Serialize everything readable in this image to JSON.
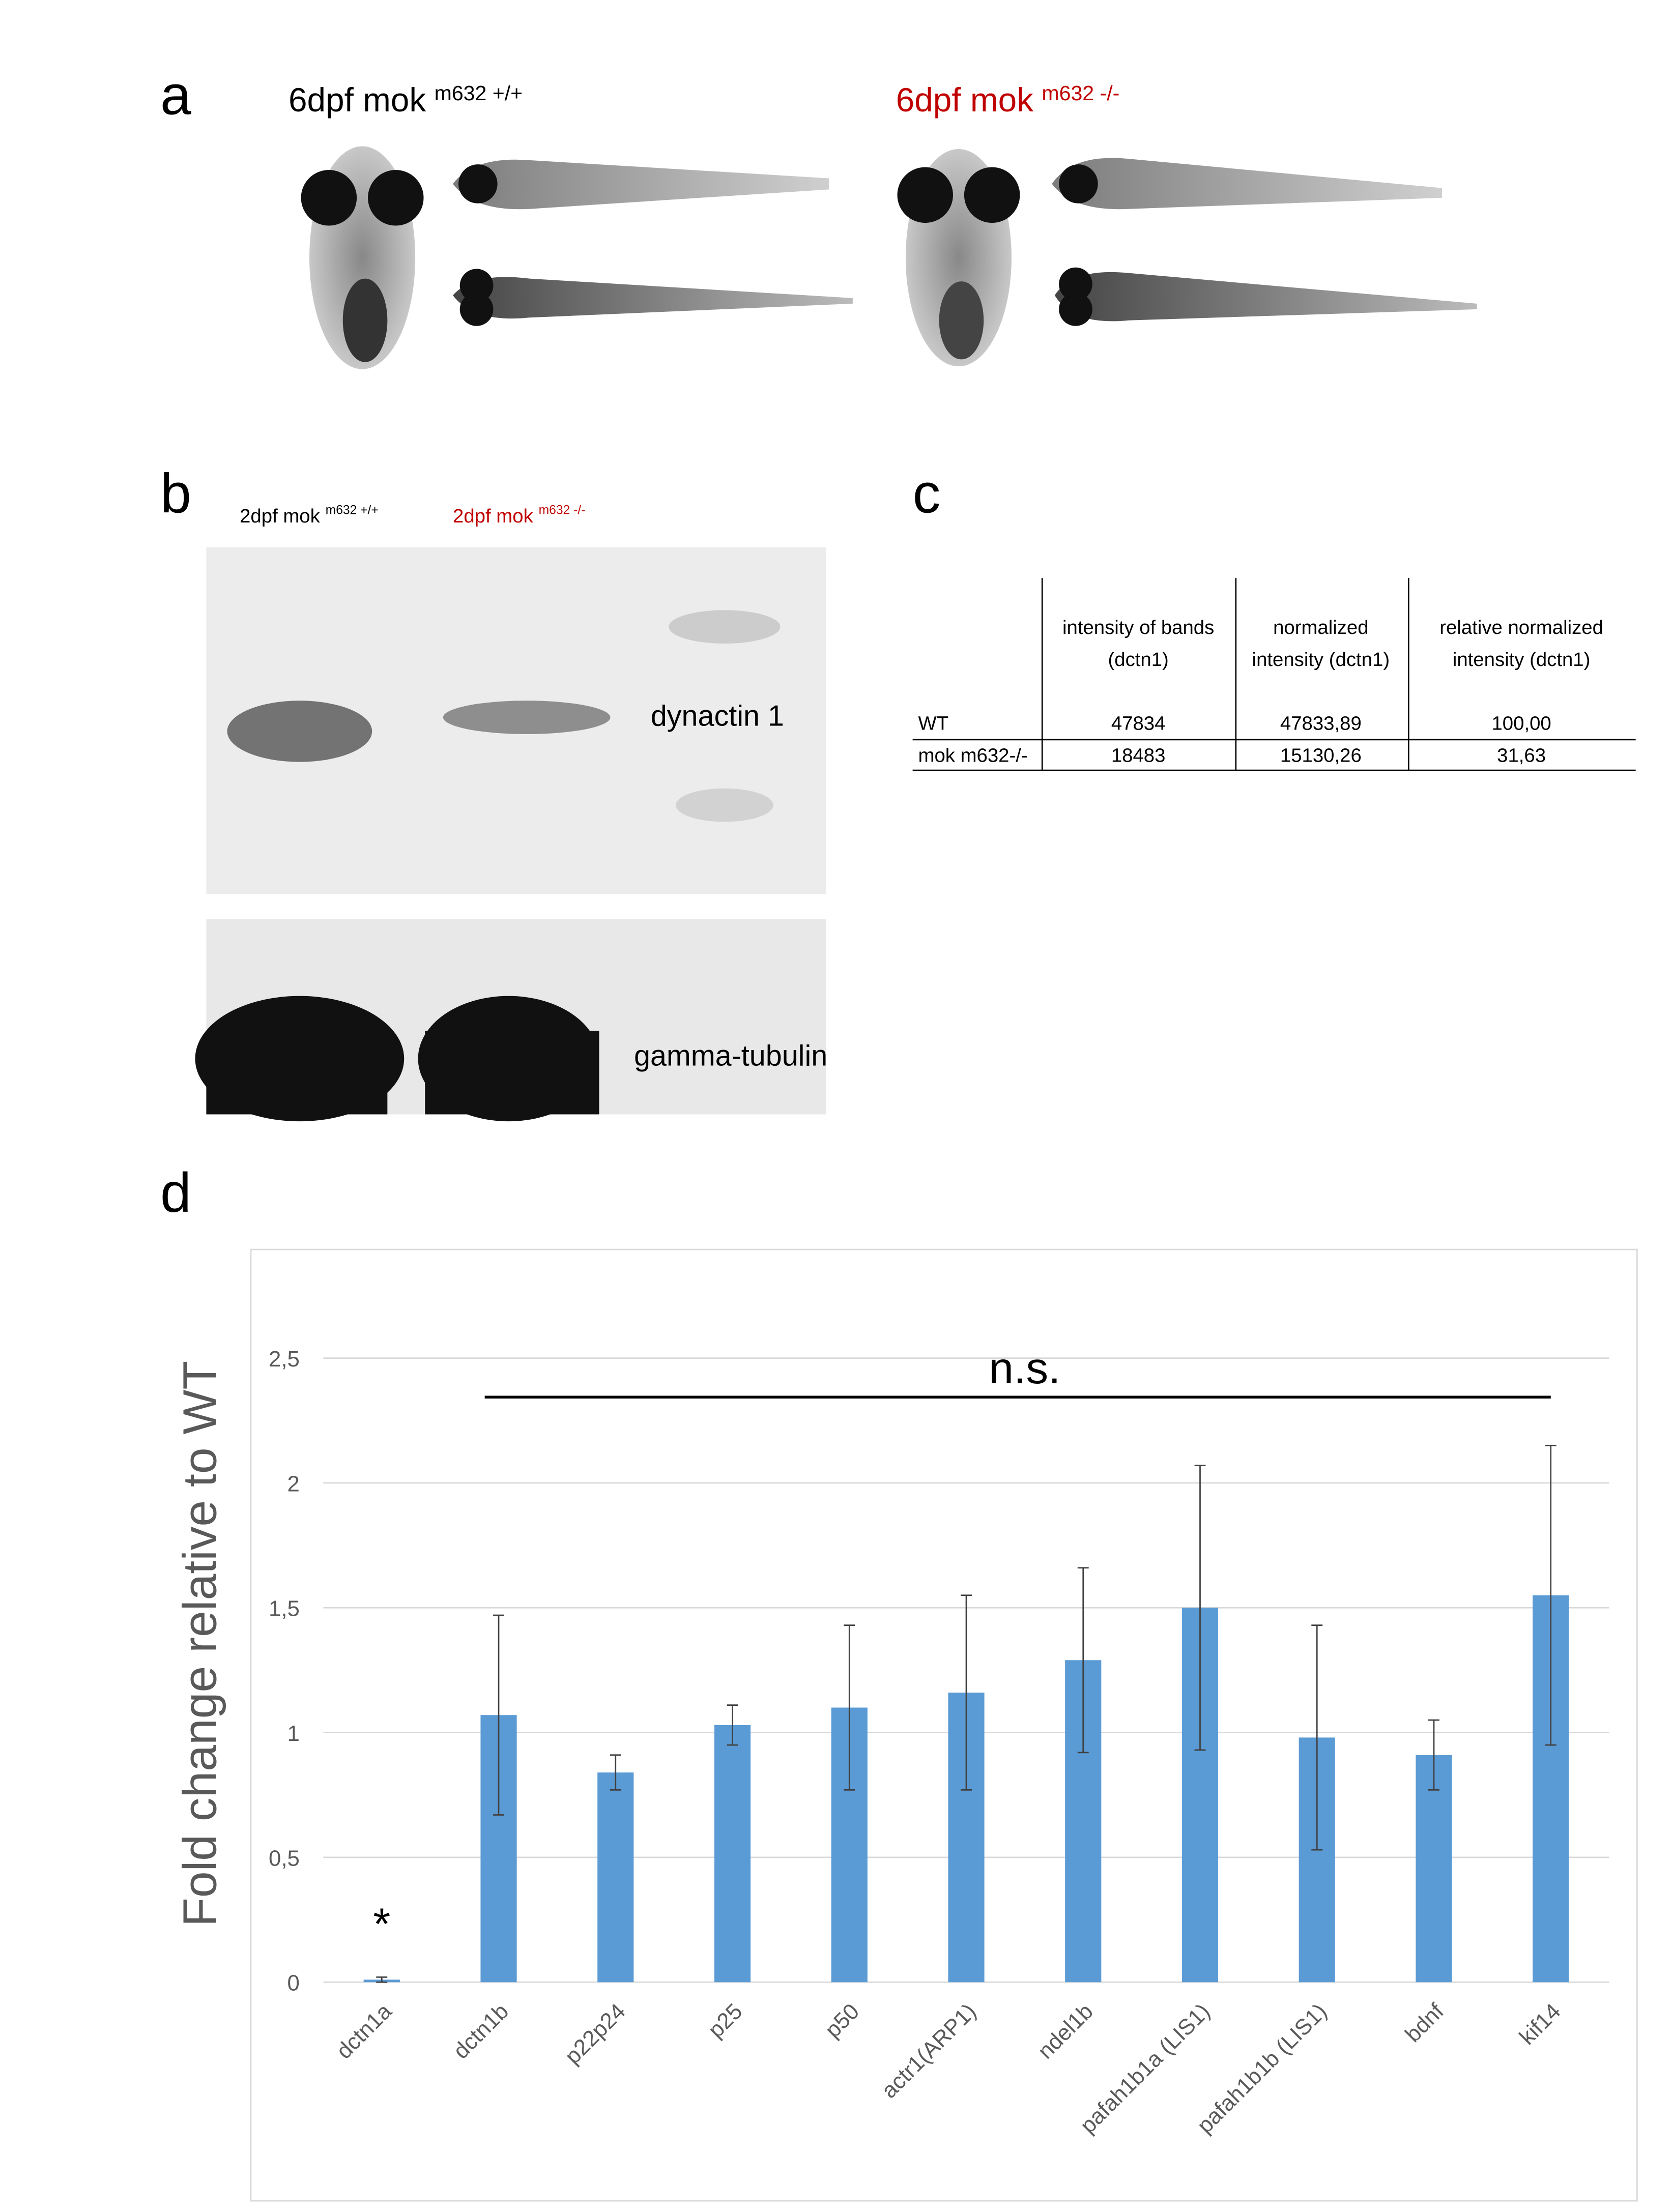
{
  "panels": {
    "a": {
      "letter": "a",
      "wild_type": {
        "text": "6dpf mok",
        "superscript": "m632 +/+"
      },
      "mutant": {
        "text": "6dpf mok",
        "superscript": "m632 -/-"
      }
    },
    "b": {
      "letter": "b",
      "wild_type": {
        "text": "2dpf mok",
        "superscript": "m632 +/+"
      },
      "mutant": {
        "text": "2dpf mok",
        "superscript": "m632 -/-"
      },
      "blots": [
        "dynactin 1",
        "gamma-tubulin"
      ]
    },
    "c": {
      "letter": "c",
      "table": {
        "headers": [
          [
            "intensity of bands",
            "(dctn1)"
          ],
          [
            "normalized",
            "intensity (dctn1)"
          ],
          [
            "relative normalized",
            "intensity (dctn1)"
          ]
        ],
        "rows": [
          [
            "WT",
            "47834",
            "47833,89",
            "100,00"
          ],
          [
            "mok m632-/-",
            "18483",
            "15130,26",
            "31,63"
          ]
        ]
      }
    },
    "d": {
      "letter": "d"
    }
  },
  "chart_data": {
    "type": "bar",
    "y_label": "Fold change relative to WT",
    "categories": [
      "dctn1a",
      "dctn1b",
      "p22p24",
      "p25",
      "p50",
      "actr1(ARP1)",
      "ndel1b",
      "pafah1b1a (LIS1)",
      "pafah1b1b (LIS1)",
      "bdnf",
      "kif14"
    ],
    "values": [
      0.01,
      1.07,
      0.84,
      1.03,
      1.1,
      1.16,
      1.29,
      1.5,
      0.98,
      0.91,
      1.55
    ],
    "errors": [
      0.01,
      0.4,
      0.07,
      0.08,
      0.33,
      0.39,
      0.37,
      0.57,
      0.45,
      0.14,
      0.6
    ],
    "color": "#5b9bd5",
    "ylim": [
      0,
      2.5
    ],
    "yticks": [
      0,
      {
        "value": 0.5,
        "label": "0,5"
      },
      1,
      {
        "value": 1.5,
        "label": "1,5"
      },
      2,
      {
        "value": 2.5,
        "label": "2,5"
      }
    ],
    "grid": true,
    "annotations": [
      "*",
      "n.s."
    ]
  }
}
